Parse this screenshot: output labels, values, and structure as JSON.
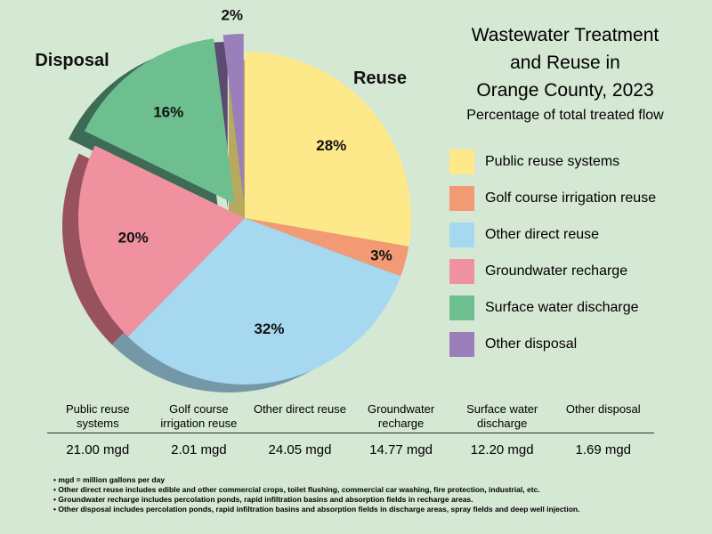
{
  "chart_data": {
    "type": "pie",
    "title": [
      "Wastewater Treatment",
      "and Reuse in",
      "Orange County, 2023"
    ],
    "subtitle": "Percentage of total treated flow",
    "group_labels": {
      "reuse": "Reuse",
      "disposal": "Disposal"
    },
    "slices": [
      {
        "name": "Public reuse systems",
        "percent": 28,
        "label": "28%",
        "color": "#fde98a",
        "side_color": "#b7a95e",
        "group": "reuse"
      },
      {
        "name": "Golf course irrigation reuse",
        "percent": 3,
        "label": "3%",
        "color": "#f29a73",
        "side_color": "#b06e52",
        "group": "reuse"
      },
      {
        "name": "Other direct reuse",
        "percent": 32,
        "label": "32%",
        "color": "#a6d8ef",
        "side_color": "#7498a8",
        "group": "reuse"
      },
      {
        "name": "Groundwater recharge",
        "percent": 20,
        "label": "20%",
        "color": "#f0919f",
        "side_color": "#98525e",
        "group": "reuse"
      },
      {
        "name": "Surface water discharge",
        "percent": 16,
        "label": "16%",
        "color": "#6ebf90",
        "side_color": "#3d6b55",
        "group": "disposal"
      },
      {
        "name": "Other disposal",
        "percent": 2,
        "label": "2%",
        "color": "#9b7fba",
        "side_color": "#5d4a73",
        "group": "disposal"
      }
    ]
  },
  "table": {
    "headers": [
      "Public reuse systems",
      "Golf course irrigation reuse",
      "Other direct reuse",
      "Groundwater recharge",
      "Surface water discharge",
      "Other disposal"
    ],
    "values": [
      "21.00 mgd",
      "2.01 mgd",
      "24.05 mgd",
      "14.77 mgd",
      "12.20 mgd",
      "1.69 mgd"
    ]
  },
  "notes": [
    "• mgd = million gallons per day",
    "• Other direct reuse includes edible and other commercial crops, toilet flushing, commercial car washing, fire protection, industrial, etc.",
    "• Groundwater recharge includes percolation ponds, rapid infiltration basins and absorption fields in recharge areas.",
    "• Other disposal includes percolation ponds, rapid infiltration basins and absorption fields in discharge areas, spray fields and deep well injection."
  ]
}
